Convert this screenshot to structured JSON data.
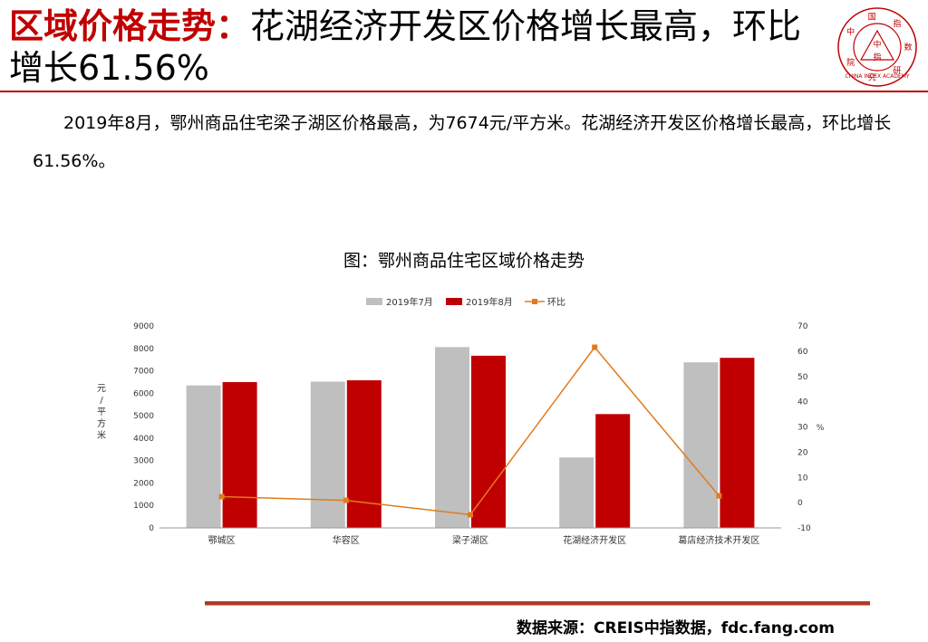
{
  "header": {
    "title_highlight": "区域价格走势：",
    "title_rest": "花湖经济开发区价格增长最高，环比增长61.56%"
  },
  "logo": {
    "chars": [
      "中",
      "国",
      "指",
      "数",
      "研",
      "究",
      "院"
    ],
    "center_top": "中",
    "center_bottom": "指",
    "english": "CHINA INDEX ACADEMY"
  },
  "summary": "2019年8月，鄂州商品住宅梁子湖区价格最高，为7674元/平方米。花湖经济开发区价格增长最高，环比增长61.56%。",
  "colors": {
    "accent": "#c00000",
    "bar_jul": "#bfbfbf",
    "bar_aug": "#c00000",
    "line": "#e07b1f"
  },
  "chart_data": {
    "type": "bar",
    "title": "图：鄂州商品住宅区域价格走势",
    "categories": [
      "鄂城区",
      "华容区",
      "梁子湖区",
      "花湖经济开发区",
      "葛店经济技术开发区"
    ],
    "series": [
      {
        "name": "2019年7月",
        "type": "bar",
        "axis": "left",
        "values": [
          6350,
          6520,
          8060,
          3140,
          7380
        ]
      },
      {
        "name": "2019年8月",
        "type": "bar",
        "axis": "left",
        "values": [
          6500,
          6580,
          7674,
          5073,
          7580
        ]
      },
      {
        "name": "环比",
        "type": "line",
        "axis": "right",
        "values": [
          2.36,
          0.92,
          -4.78,
          61.56,
          2.71
        ]
      }
    ],
    "ylabel": "元/平方米",
    "y2label": "%",
    "ylim": [
      0,
      9000
    ],
    "yticks": [
      0,
      1000,
      2000,
      3000,
      4000,
      5000,
      6000,
      7000,
      8000,
      9000
    ],
    "y2lim": [
      -10,
      70
    ],
    "y2ticks": [
      -10,
      0,
      10,
      20,
      30,
      40,
      50,
      60,
      70
    ],
    "legend_position": "top"
  },
  "footer": {
    "source": "数据来源：CREIS中指数据，fdc.fang.com"
  }
}
